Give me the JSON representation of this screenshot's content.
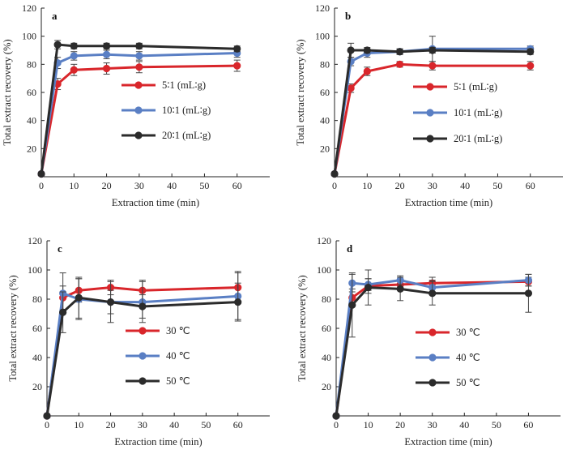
{
  "figure": {
    "colors": [
      "#d9262b",
      "#5a7fc4",
      "#2b2b2b"
    ]
  },
  "chart_data": [
    {
      "type": "line",
      "panel": "a",
      "xlabel": "Extraction time (min)",
      "ylabel": "Total extract recovery (%)",
      "xlim": [
        0,
        70
      ],
      "ylim": [
        0,
        120
      ],
      "xticks": [
        "0",
        "10",
        "20",
        "30",
        "40",
        "50",
        "60"
      ],
      "yticks": [
        "20",
        "40",
        "60",
        "80",
        "100",
        "120"
      ],
      "x": [
        0,
        5,
        10,
        20,
        30,
        60
      ],
      "legend_position": "center-right",
      "series": [
        {
          "name": "5∶1 (mL∶g)",
          "color": "#d9262b",
          "values": [
            2,
            66,
            76,
            77,
            78,
            79
          ],
          "errors": [
            0,
            4,
            4,
            4,
            4,
            4
          ]
        },
        {
          "name": "10∶1 (mL∶g)",
          "color": "#5a7fc4",
          "values": [
            2,
            81,
            86,
            87,
            86,
            88
          ],
          "errors": [
            0,
            4,
            3,
            3,
            3,
            3
          ]
        },
        {
          "name": "20∶1 (mL∶g)",
          "color": "#2b2b2b",
          "values": [
            2,
            94,
            93,
            93,
            93,
            91
          ],
          "errors": [
            0,
            3,
            2,
            2,
            2,
            2
          ]
        }
      ]
    },
    {
      "type": "line",
      "panel": "b",
      "xlabel": "Extraction time (min)",
      "ylabel": "Total extract recovery (%)",
      "xlim": [
        0,
        70
      ],
      "ylim": [
        0,
        120
      ],
      "xticks": [
        "0",
        "10",
        "20",
        "30",
        "40",
        "50",
        "60"
      ],
      "yticks": [
        "20",
        "40",
        "60",
        "80",
        "100",
        "120"
      ],
      "x": [
        0,
        5,
        10,
        20,
        30,
        60
      ],
      "legend_position": "center-right",
      "series": [
        {
          "name": "5∶1 (mL∶g)",
          "color": "#d9262b",
          "values": [
            2,
            63,
            75,
            80,
            79,
            79
          ],
          "errors": [
            0,
            3,
            3,
            2,
            3,
            3
          ]
        },
        {
          "name": "10∶1 (mL∶g)",
          "color": "#5a7fc4",
          "values": [
            2,
            82,
            88,
            89,
            91,
            91
          ],
          "errors": [
            0,
            3,
            3,
            2,
            9,
            2
          ]
        },
        {
          "name": "20∶1 (mL∶g)",
          "color": "#2b2b2b",
          "values": [
            2,
            90,
            90,
            89,
            90,
            89
          ],
          "errors": [
            0,
            5,
            2,
            2,
            2,
            2
          ]
        }
      ]
    },
    {
      "type": "line",
      "panel": "c",
      "xlabel": "Extraction time (min)",
      "ylabel": "Total extract recovery (%)",
      "xlim": [
        0,
        70
      ],
      "ylim": [
        0,
        120
      ],
      "xticks": [
        "0",
        "10",
        "20",
        "30",
        "40",
        "50",
        "60"
      ],
      "yticks": [
        "20",
        "40",
        "60",
        "80",
        "100",
        "120"
      ],
      "x": [
        0,
        5,
        10,
        20,
        30,
        60
      ],
      "legend_position": "center-right",
      "series": [
        {
          "name": "30 ℃",
          "color": "#d9262b",
          "values": [
            0,
            81,
            86,
            88,
            86,
            88
          ],
          "errors": [
            0,
            8,
            8,
            5,
            7,
            11
          ]
        },
        {
          "name": "40 ℃",
          "color": "#5a7fc4",
          "values": [
            0,
            84,
            80,
            78,
            78,
            82
          ],
          "errors": [
            0,
            14,
            14,
            8,
            14,
            16
          ]
        },
        {
          "name": "50 ℃",
          "color": "#2b2b2b",
          "values": [
            0,
            71,
            81,
            78,
            75,
            78
          ],
          "errors": [
            0,
            14,
            14,
            14,
            8,
            13
          ]
        }
      ]
    },
    {
      "type": "line",
      "panel": "d",
      "xlabel": "Extraction time (min)",
      "ylabel": "Total extract recovery (%)",
      "xlim": [
        0,
        70
      ],
      "ylim": [
        0,
        120
      ],
      "xticks": [
        "0",
        "10",
        "20",
        "30",
        "40",
        "50",
        "60"
      ],
      "yticks": [
        "20",
        "40",
        "60",
        "80",
        "100",
        "120"
      ],
      "x": [
        0,
        5,
        10,
        20,
        30,
        60
      ],
      "legend_position": "center-right",
      "series": [
        {
          "name": "30 ℃",
          "color": "#d9262b",
          "values": [
            0,
            81,
            89,
            90,
            91,
            92
          ],
          "errors": [
            0,
            6,
            5,
            4,
            4,
            3
          ]
        },
        {
          "name": "40 ℃",
          "color": "#5a7fc4",
          "values": [
            0,
            91,
            90,
            93,
            88,
            93
          ],
          "errors": [
            0,
            6,
            4,
            3,
            5,
            4
          ]
        },
        {
          "name": "50 ℃",
          "color": "#2b2b2b",
          "values": [
            0,
            76,
            88,
            87,
            84,
            84
          ],
          "errors": [
            0,
            22,
            12,
            8,
            8,
            13
          ]
        }
      ]
    }
  ]
}
